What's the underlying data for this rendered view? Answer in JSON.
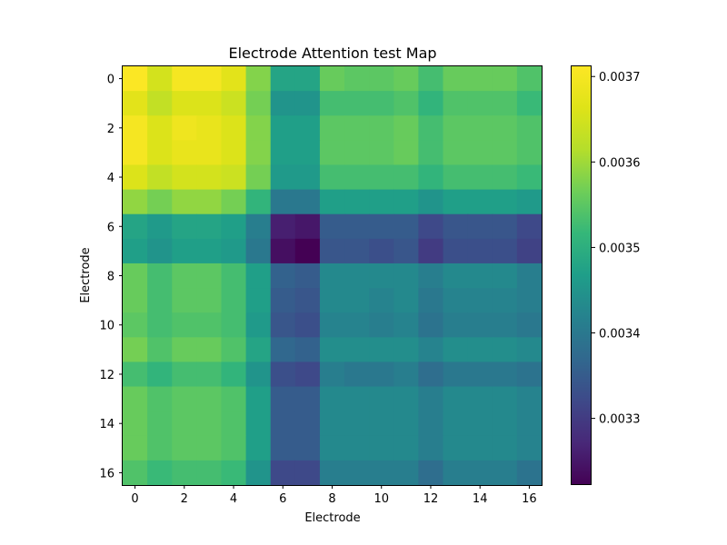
{
  "chart_data": {
    "type": "heatmap",
    "title": "Electrode Attention test Map",
    "xlabel": "Electrode",
    "ylabel": "Electrode",
    "x_ticks": [
      "0",
      "2",
      "4",
      "6",
      "8",
      "10",
      "12",
      "14",
      "16"
    ],
    "y_ticks": [
      "0",
      "2",
      "4",
      "6",
      "8",
      "10",
      "12",
      "14",
      "16"
    ],
    "colormap": "viridis",
    "colorbar": {
      "min": 0.003222,
      "max": 0.003713,
      "ticks": [
        "0.0033",
        "0.0034",
        "0.0035",
        "0.0036",
        "0.0037"
      ]
    },
    "matrix": [
      [
        0.00371,
        0.00365,
        0.0037,
        0.0037,
        0.00367,
        0.00358,
        0.00348,
        0.00348,
        0.00356,
        0.00355,
        0.00355,
        0.00356,
        0.00353,
        0.00356,
        0.00356,
        0.00356,
        0.00354
      ],
      [
        0.00367,
        0.00363,
        0.00366,
        0.00366,
        0.00364,
        0.00357,
        0.00345,
        0.00345,
        0.00353,
        0.00353,
        0.00353,
        0.00354,
        0.00351,
        0.00354,
        0.00354,
        0.00354,
        0.00352
      ],
      [
        0.0037,
        0.00366,
        0.00369,
        0.00368,
        0.00366,
        0.00358,
        0.00347,
        0.00347,
        0.00355,
        0.00355,
        0.00355,
        0.00356,
        0.00353,
        0.00355,
        0.00355,
        0.00355,
        0.00354
      ],
      [
        0.0037,
        0.00366,
        0.00368,
        0.00368,
        0.00366,
        0.00358,
        0.00347,
        0.00347,
        0.00355,
        0.00355,
        0.00355,
        0.00356,
        0.00353,
        0.00355,
        0.00355,
        0.00355,
        0.00354
      ],
      [
        0.00366,
        0.00363,
        0.00365,
        0.00365,
        0.00364,
        0.00357,
        0.00346,
        0.00346,
        0.00353,
        0.00353,
        0.00353,
        0.00353,
        0.00351,
        0.00353,
        0.00353,
        0.00353,
        0.00352
      ],
      [
        0.00359,
        0.00357,
        0.00359,
        0.00359,
        0.00357,
        0.00351,
        0.0034,
        0.0034,
        0.00347,
        0.00347,
        0.00347,
        0.00347,
        0.00345,
        0.00347,
        0.00347,
        0.00347,
        0.00346
      ],
      [
        0.00348,
        0.00346,
        0.00348,
        0.00348,
        0.00347,
        0.00341,
        0.00326,
        0.00325,
        0.00335,
        0.00335,
        0.00335,
        0.00335,
        0.00332,
        0.00334,
        0.00334,
        0.00334,
        0.00332
      ],
      [
        0.00347,
        0.00345,
        0.00347,
        0.00347,
        0.00346,
        0.0034,
        0.00324,
        0.00322,
        0.00334,
        0.00334,
        0.00333,
        0.00334,
        0.0033,
        0.00333,
        0.00333,
        0.00333,
        0.00331
      ],
      [
        0.00356,
        0.00353,
        0.00355,
        0.00355,
        0.00353,
        0.00347,
        0.00336,
        0.00335,
        0.00343,
        0.00343,
        0.00343,
        0.00343,
        0.00341,
        0.00343,
        0.00343,
        0.00343,
        0.00341
      ],
      [
        0.00356,
        0.00353,
        0.00355,
        0.00355,
        0.00353,
        0.00347,
        0.00335,
        0.00334,
        0.00343,
        0.00343,
        0.00342,
        0.00343,
        0.0034,
        0.00342,
        0.00342,
        0.00342,
        0.00341
      ],
      [
        0.00355,
        0.00353,
        0.00354,
        0.00354,
        0.00353,
        0.00346,
        0.00334,
        0.00333,
        0.00342,
        0.00342,
        0.00341,
        0.00342,
        0.00339,
        0.00341,
        0.00341,
        0.00341,
        0.0034
      ],
      [
        0.00357,
        0.00354,
        0.00356,
        0.00356,
        0.00354,
        0.00348,
        0.00337,
        0.00336,
        0.00344,
        0.00344,
        0.00344,
        0.00344,
        0.00342,
        0.00344,
        0.00344,
        0.00344,
        0.00343
      ],
      [
        0.00353,
        0.00351,
        0.00353,
        0.00353,
        0.00351,
        0.00345,
        0.00333,
        0.00332,
        0.00341,
        0.0034,
        0.0034,
        0.00341,
        0.00338,
        0.0034,
        0.0034,
        0.0034,
        0.00339
      ],
      [
        0.00356,
        0.00354,
        0.00355,
        0.00355,
        0.00354,
        0.00347,
        0.00335,
        0.00335,
        0.00343,
        0.00343,
        0.00343,
        0.00343,
        0.00341,
        0.00343,
        0.00343,
        0.00343,
        0.00342
      ],
      [
        0.00356,
        0.00354,
        0.00355,
        0.00355,
        0.00354,
        0.00347,
        0.00335,
        0.00335,
        0.00343,
        0.00343,
        0.00343,
        0.00343,
        0.00341,
        0.00343,
        0.00343,
        0.00343,
        0.00342
      ],
      [
        0.00356,
        0.00354,
        0.00355,
        0.00355,
        0.00354,
        0.00347,
        0.00335,
        0.00335,
        0.00343,
        0.00343,
        0.00343,
        0.00343,
        0.00341,
        0.00343,
        0.00343,
        0.00343,
        0.00342
      ],
      [
        0.00354,
        0.00352,
        0.00353,
        0.00353,
        0.00352,
        0.00345,
        0.00332,
        0.00332,
        0.00341,
        0.00341,
        0.00341,
        0.00341,
        0.00338,
        0.00341,
        0.00341,
        0.00341,
        0.00339
      ]
    ]
  }
}
